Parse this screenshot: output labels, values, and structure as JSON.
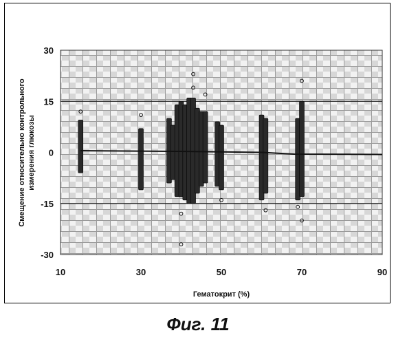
{
  "chart_data": {
    "type": "scatter",
    "title": "",
    "xlabel": "Гематокрит (%)",
    "ylabel": [
      "Смещение относительно контрольного",
      "измерения глюкозы"
    ],
    "xlim": [
      10,
      90
    ],
    "ylim": [
      -30,
      30
    ],
    "x_ticks": [
      "10",
      "30",
      "50",
      "70",
      "90"
    ],
    "y_ticks": [
      "30",
      "15",
      "0",
      "-15",
      "-30"
    ],
    "reference_lines": [
      15,
      -15
    ],
    "grid": true,
    "series": [
      {
        "values": [
          {
            "x": 15,
            "y_min": -6,
            "y_max": 9.5
          },
          {
            "x": 30,
            "y_min": -11,
            "y_max": 7
          },
          {
            "x": 37,
            "y_min": -9,
            "y_max": 10
          },
          {
            "x": 38,
            "y_min": -8,
            "y_max": 8
          },
          {
            "x": 39,
            "y_min": -13,
            "y_max": 14
          },
          {
            "x": 40,
            "y_min": -13,
            "y_max": 15
          },
          {
            "x": 41,
            "y_min": -14,
            "y_max": 14
          },
          {
            "x": 42,
            "y_min": -15,
            "y_max": 16
          },
          {
            "x": 43,
            "y_min": -15,
            "y_max": 16
          },
          {
            "x": 44,
            "y_min": -12,
            "y_max": 13
          },
          {
            "x": 45,
            "y_min": -10,
            "y_max": 12
          },
          {
            "x": 46,
            "y_min": -9,
            "y_max": 12
          },
          {
            "x": 49,
            "y_min": -10,
            "y_max": 9
          },
          {
            "x": 50,
            "y_min": -11,
            "y_max": 8
          },
          {
            "x": 60,
            "y_min": -14,
            "y_max": 11
          },
          {
            "x": 61,
            "y_min": -12,
            "y_max": 10
          },
          {
            "x": 69,
            "y_min": -14,
            "y_max": 10
          },
          {
            "x": 70,
            "y_min": -13,
            "y_max": 15
          }
        ]
      }
    ],
    "outliers": [
      {
        "x": 15,
        "y": 12
      },
      {
        "x": 30,
        "y": 11
      },
      {
        "x": 40,
        "y": -27
      },
      {
        "x": 40,
        "y": -18
      },
      {
        "x": 43,
        "y": 23
      },
      {
        "x": 43,
        "y": 19
      },
      {
        "x": 46,
        "y": 17
      },
      {
        "x": 50,
        "y": -14
      },
      {
        "x": 61,
        "y": -17
      },
      {
        "x": 69,
        "y": -16
      },
      {
        "x": 70,
        "y": 21
      },
      {
        "x": 70,
        "y": -20
      }
    ],
    "trend_line": [
      {
        "x": 15,
        "y": 0.5
      },
      {
        "x": 40,
        "y": 0.3
      },
      {
        "x": 60,
        "y": 0
      },
      {
        "x": 68,
        "y": -0.5
      },
      {
        "x": 90,
        "y": -0.6
      }
    ]
  },
  "caption": "Фиг. 11"
}
